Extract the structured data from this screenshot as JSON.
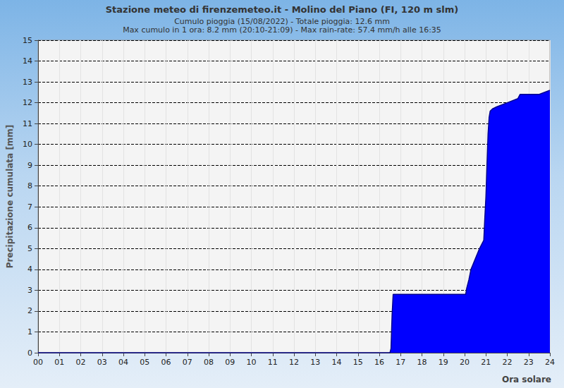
{
  "chart_data": {
    "type": "area",
    "title": "Stazione meteo di firenzemeteo.it - Molino del Piano (FI, 120 m slm)",
    "subtitle": [
      "Cumulo pioggia (15/08/2022) - Totale pioggia: 12.6 mm",
      "Max cumulo in 1 ora: 8.2 mm (20:10-21:09) - Max rain-rate: 57.4 mm/h alle 16:35"
    ],
    "x_label": "Ora solare",
    "y_label": "Precipitazione cumulata [mm]",
    "x": [
      0,
      16.5,
      16.55,
      16.6,
      16.65,
      20.05,
      20.1,
      20.2,
      20.3,
      20.5,
      20.7,
      20.9,
      20.95,
      21.0,
      21.05,
      21.1,
      21.15,
      21.2,
      21.3,
      21.5,
      22.0,
      22.5,
      22.6,
      23.5,
      24
    ],
    "values": [
      0,
      0,
      0.2,
      1.8,
      2.8,
      2.8,
      3.1,
      3.5,
      4.0,
      4.5,
      5.0,
      5.4,
      6.5,
      7.5,
      9.0,
      10.5,
      11.3,
      11.6,
      11.7,
      11.8,
      12.0,
      12.2,
      12.4,
      12.4,
      12.6
    ],
    "color": "#0000ff",
    "xlim": [
      0,
      24
    ],
    "xticks": [
      {
        "value": 0,
        "label": "00"
      },
      {
        "value": 1,
        "label": "01"
      },
      {
        "value": 2,
        "label": "02"
      },
      {
        "value": 3,
        "label": "03"
      },
      {
        "value": 4,
        "label": "04"
      },
      {
        "value": 5,
        "label": "05"
      },
      {
        "value": 6,
        "label": "06"
      },
      {
        "value": 7,
        "label": "07"
      },
      {
        "value": 8,
        "label": "08"
      },
      {
        "value": 9,
        "label": "09"
      },
      {
        "value": 10,
        "label": "10"
      },
      {
        "value": 11,
        "label": "11"
      },
      {
        "value": 12,
        "label": "12"
      },
      {
        "value": 13,
        "label": "13"
      },
      {
        "value": 14,
        "label": "14"
      },
      {
        "value": 15,
        "label": "15"
      },
      {
        "value": 16,
        "label": "16"
      },
      {
        "value": 17,
        "label": "17"
      },
      {
        "value": 18,
        "label": "18"
      },
      {
        "value": 19,
        "label": "19"
      },
      {
        "value": 20,
        "label": "20"
      },
      {
        "value": 21,
        "label": "21"
      },
      {
        "value": 22,
        "label": "22"
      },
      {
        "value": 23,
        "label": "23"
      },
      {
        "value": 24,
        "label": "24"
      }
    ],
    "ylim": [
      0,
      15
    ],
    "yticks": [
      0,
      1,
      2,
      3,
      4,
      5,
      6,
      7,
      8,
      9,
      10,
      11,
      12,
      13,
      14,
      15
    ],
    "grid": true,
    "marker": "none"
  }
}
